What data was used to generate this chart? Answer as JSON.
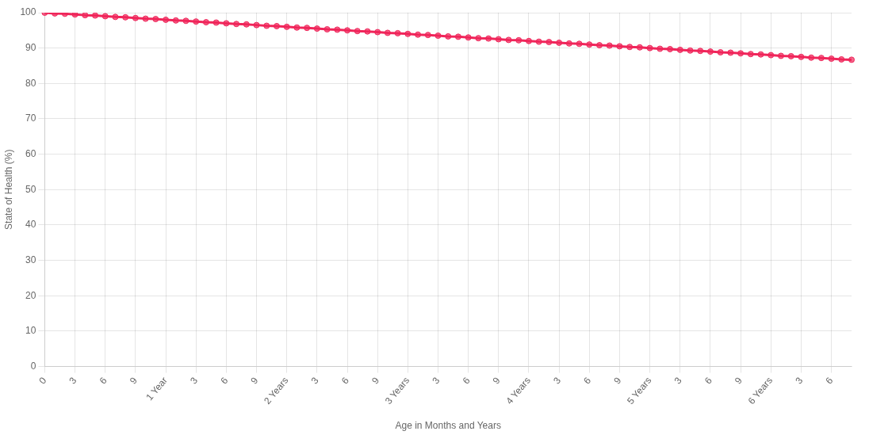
{
  "chart_data": {
    "type": "line",
    "xlabel": "Age in Months and Years",
    "ylabel": "State of Health (%)",
    "categories": [
      "0",
      null,
      null,
      "3",
      null,
      null,
      "6",
      null,
      null,
      "9",
      null,
      null,
      "1 Year",
      null,
      null,
      "3",
      null,
      null,
      "6",
      null,
      null,
      "9",
      null,
      null,
      "2 Years",
      null,
      null,
      "3",
      null,
      null,
      "6",
      null,
      null,
      "9",
      null,
      null,
      "3 Years",
      null,
      null,
      "3",
      null,
      null,
      "6",
      null,
      null,
      "9",
      null,
      null,
      "4 Years",
      null,
      null,
      "3",
      null,
      null,
      "6",
      null,
      null,
      "9",
      null,
      null,
      "5 Years",
      null,
      null,
      "3",
      null,
      null,
      "6",
      null,
      null,
      "9",
      null,
      null,
      "6 Years",
      null,
      null,
      "3",
      null,
      null,
      "6",
      null,
      null
    ],
    "series": [
      {
        "color": "#f0255a",
        "values": [
          100,
          99.8,
          99.7,
          99.5,
          99.3,
          99.2,
          99,
          98.8,
          98.7,
          98.5,
          98.3,
          98.2,
          98,
          97.8,
          97.7,
          97.5,
          97.3,
          97.2,
          97,
          96.8,
          96.7,
          96.5,
          96.3,
          96.2,
          96,
          95.8,
          95.7,
          95.5,
          95.3,
          95.2,
          95,
          94.8,
          94.7,
          94.5,
          94.3,
          94.2,
          94,
          93.8,
          93.7,
          93.5,
          93.3,
          93.2,
          93,
          92.8,
          92.7,
          92.5,
          92.3,
          92.2,
          92,
          91.8,
          91.7,
          91.5,
          91.3,
          91.2,
          91,
          90.8,
          90.7,
          90.5,
          90.3,
          90.2,
          90,
          89.8,
          89.7,
          89.5,
          89.3,
          89.2,
          89,
          88.8,
          88.7,
          88.5,
          88.3,
          88.2,
          88,
          87.8,
          87.7,
          87.5,
          87.3,
          87.2,
          87,
          86.8,
          86.7
        ]
      }
    ],
    "ylim": [
      0,
      100
    ],
    "yticks": [
      0,
      10,
      20,
      30,
      40,
      50,
      60,
      70,
      80,
      90,
      100
    ],
    "grid": true,
    "legend": false,
    "marker": "circle",
    "line_style": "solid"
  }
}
